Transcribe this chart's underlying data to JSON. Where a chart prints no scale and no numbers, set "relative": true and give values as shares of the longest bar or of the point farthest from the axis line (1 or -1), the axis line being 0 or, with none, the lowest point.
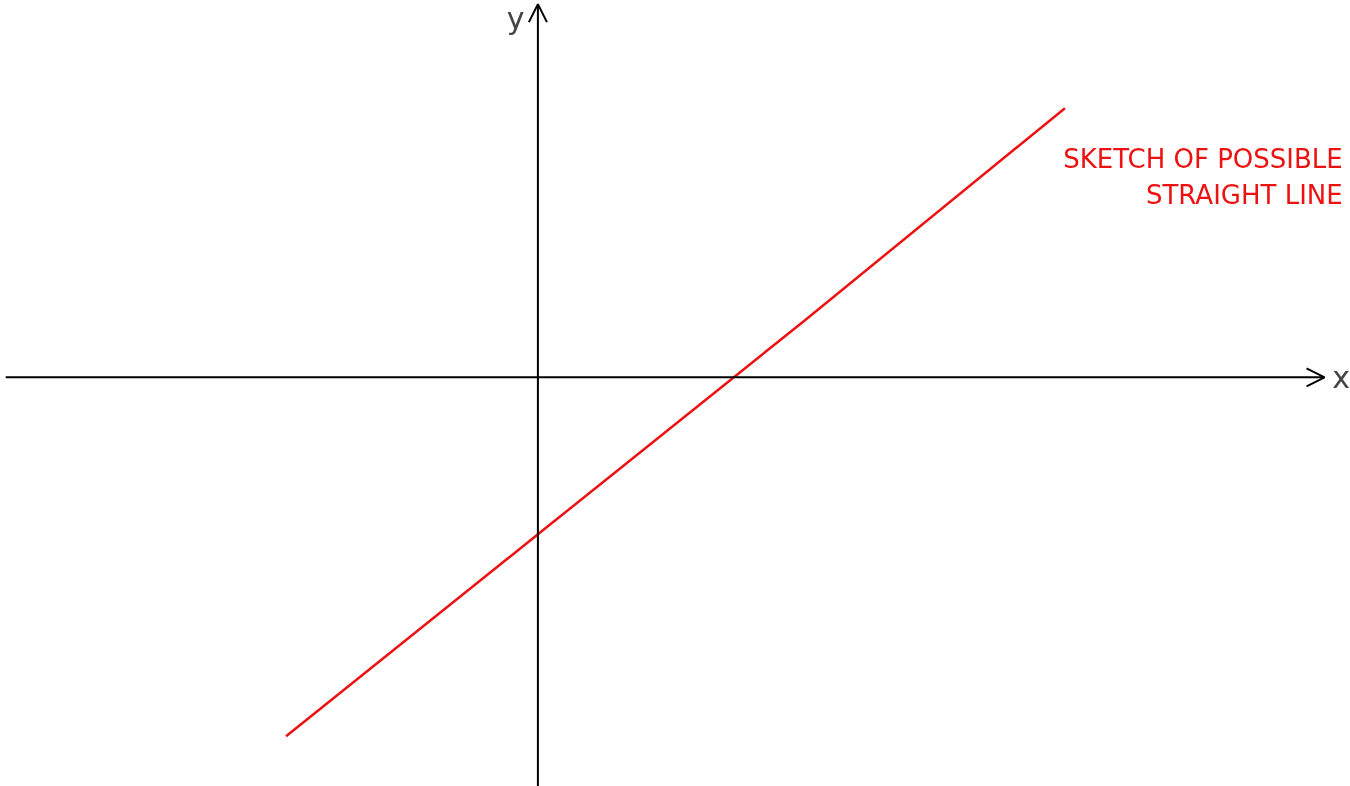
{
  "chart_data": {
    "type": "line",
    "relative": true,
    "xlabel": "x",
    "ylabel": "y",
    "categories": [
      null,
      null,
      null,
      null
    ],
    "series": [
      {
        "color": "#ee1111",
        "values": [
          -1,
          -0.42,
          0.16,
          0.75
        ]
      }
    ],
    "annotations": [
      "SKETCH OF POSSIBLE\nSTRAIGHT LINE"
    ],
    "grid": false,
    "marker": "none",
    "line_style": "solid"
  }
}
